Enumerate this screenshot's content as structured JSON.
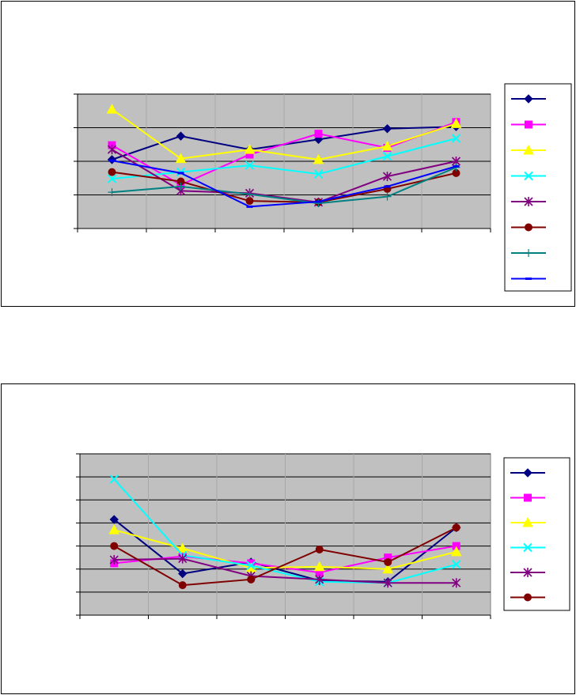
{
  "chart_data": [
    {
      "type": "line",
      "title": "",
      "xlabel": "",
      "ylabel": "",
      "categories": [
        "",
        "",
        "",
        "",
        "",
        ""
      ],
      "ylim": [
        0,
        4
      ],
      "yticks": [
        0,
        1,
        2,
        3,
        4
      ],
      "grid": true,
      "plot_background": "#c0c0c0",
      "legend_position": "right",
      "series": [
        {
          "color": "#000080",
          "marker": "diamond",
          "values": [
            2.05,
            2.75,
            2.35,
            2.65,
            2.97,
            3.03
          ]
        },
        {
          "color": "#ff00ff",
          "marker": "square",
          "values": [
            2.48,
            1.3,
            2.2,
            2.82,
            2.4,
            3.17
          ]
        },
        {
          "color": "#ffff00",
          "marker": "triangle",
          "values": [
            3.55,
            2.08,
            2.35,
            2.05,
            2.45,
            3.12
          ]
        },
        {
          "color": "#00ffff",
          "marker": "x",
          "values": [
            1.48,
            1.68,
            1.88,
            1.62,
            2.15,
            2.68
          ]
        },
        {
          "color": "#800080",
          "marker": "star",
          "values": [
            2.35,
            1.12,
            1.05,
            0.78,
            1.55,
            2.0
          ]
        },
        {
          "color": "#800000",
          "marker": "circle",
          "values": [
            1.68,
            1.4,
            0.82,
            0.78,
            1.18,
            1.65
          ]
        },
        {
          "color": "#008080",
          "marker": "plus",
          "values": [
            1.08,
            1.25,
            1.02,
            0.75,
            0.95,
            1.82
          ]
        },
        {
          "color": "#0000ff",
          "marker": "dash",
          "values": [
            2.02,
            1.65,
            0.65,
            0.8,
            1.25,
            1.85
          ]
        }
      ]
    },
    {
      "type": "line",
      "title": "",
      "xlabel": "",
      "ylabel": "",
      "categories": [
        "",
        "",
        "",
        "",
        "",
        ""
      ],
      "ylim": [
        0,
        7
      ],
      "yticks": [
        0,
        1,
        2,
        3,
        4,
        5,
        6,
        7
      ],
      "grid": true,
      "plot_background": "#c0c0c0",
      "legend_position": "right",
      "series": [
        {
          "color": "#000080",
          "marker": "diamond",
          "values": [
            4.15,
            1.8,
            2.3,
            1.5,
            1.45,
            3.8
          ]
        },
        {
          "color": "#ff00ff",
          "marker": "square",
          "values": [
            2.25,
            2.55,
            2.25,
            1.85,
            2.5,
            3.0
          ]
        },
        {
          "color": "#ffff00",
          "marker": "triangle",
          "values": [
            3.7,
            2.9,
            2.05,
            2.1,
            2.0,
            2.75
          ]
        },
        {
          "color": "#00ffff",
          "marker": "x",
          "values": [
            5.9,
            2.6,
            2.15,
            1.45,
            1.4,
            2.2
          ]
        },
        {
          "color": "#800080",
          "marker": "star",
          "values": [
            2.4,
            2.45,
            1.7,
            1.55,
            1.4,
            1.4
          ]
        },
        {
          "color": "#800000",
          "marker": "circle",
          "values": [
            3.0,
            1.3,
            1.55,
            2.85,
            2.3,
            3.8
          ]
        }
      ]
    }
  ]
}
